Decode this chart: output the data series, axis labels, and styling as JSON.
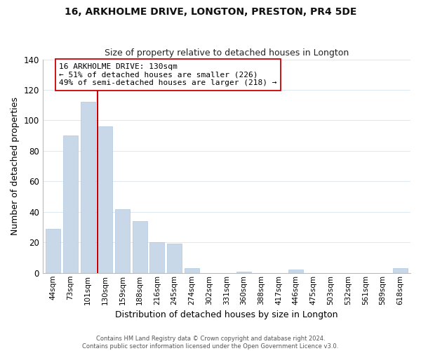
{
  "title": "16, ARKHOLME DRIVE, LONGTON, PRESTON, PR4 5DE",
  "subtitle": "Size of property relative to detached houses in Longton",
  "xlabel": "Distribution of detached houses by size in Longton",
  "ylabel": "Number of detached properties",
  "bar_labels": [
    "44sqm",
    "73sqm",
    "101sqm",
    "130sqm",
    "159sqm",
    "188sqm",
    "216sqm",
    "245sqm",
    "274sqm",
    "302sqm",
    "331sqm",
    "360sqm",
    "388sqm",
    "417sqm",
    "446sqm",
    "475sqm",
    "503sqm",
    "532sqm",
    "561sqm",
    "589sqm",
    "618sqm"
  ],
  "bar_values": [
    29,
    90,
    112,
    96,
    42,
    34,
    20,
    19,
    3,
    0,
    0,
    1,
    0,
    0,
    2,
    0,
    0,
    0,
    0,
    0,
    3
  ],
  "bar_color": "#c8d8e8",
  "bar_edge_color": "#b0c8e0",
  "highlight_bar_index": 3,
  "highlight_color": "#cc0000",
  "ylim": [
    0,
    140
  ],
  "yticks": [
    0,
    20,
    40,
    60,
    80,
    100,
    120,
    140
  ],
  "annotation_title": "16 ARKHOLME DRIVE: 130sqm",
  "annotation_line1": "← 51% of detached houses are smaller (226)",
  "annotation_line2": "49% of semi-detached houses are larger (218) →",
  "annotation_box_color": "#ffffff",
  "annotation_box_edgecolor": "#cc0000",
  "footer_line1": "Contains HM Land Registry data © Crown copyright and database right 2024.",
  "footer_line2": "Contains public sector information licensed under the Open Government Licence v3.0.",
  "background_color": "#ffffff",
  "grid_color": "#dce8f0"
}
